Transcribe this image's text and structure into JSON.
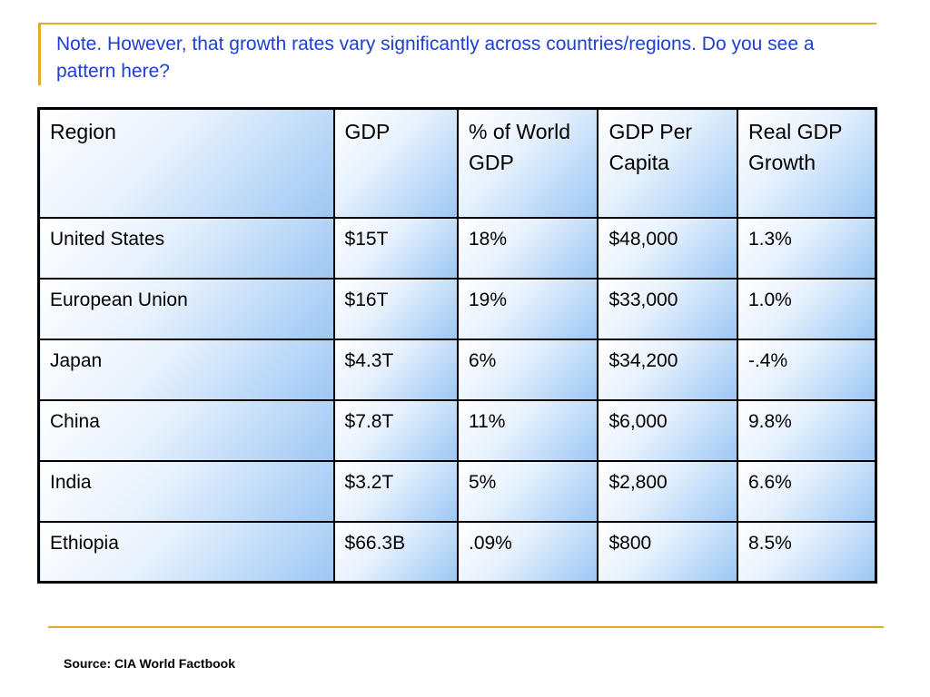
{
  "note": "Note. However, that growth rates vary significantly across countries/regions.  Do you see a pattern here?",
  "table": {
    "headers": [
      "Region",
      "GDP",
      "% of World GDP",
      "GDP Per Capita",
      "Real GDP Growth"
    ],
    "rows": [
      [
        "United States",
        "$15T",
        "18%",
        "$48,000",
        "1.3%"
      ],
      [
        "European Union",
        "$16T",
        "19%",
        "$33,000",
        "1.0%"
      ],
      [
        "Japan",
        "$4.3T",
        "6%",
        "$34,200",
        "-.4%"
      ],
      [
        "China",
        "$7.8T",
        "11%",
        "$6,000",
        "9.8%"
      ],
      [
        "India",
        "$3.2T",
        "5%",
        "$2,800",
        "6.6%"
      ],
      [
        "Ethiopia",
        "$66.3B",
        ".09%",
        "$800",
        "8.5%"
      ]
    ]
  },
  "source": "Source: CIA World Factbook",
  "colors": {
    "accent": "#e0a92f",
    "note_text": "#1f3fd1",
    "cell_gradient_light": "#ffffff",
    "cell_gradient_dark": "#9cc7f4"
  }
}
